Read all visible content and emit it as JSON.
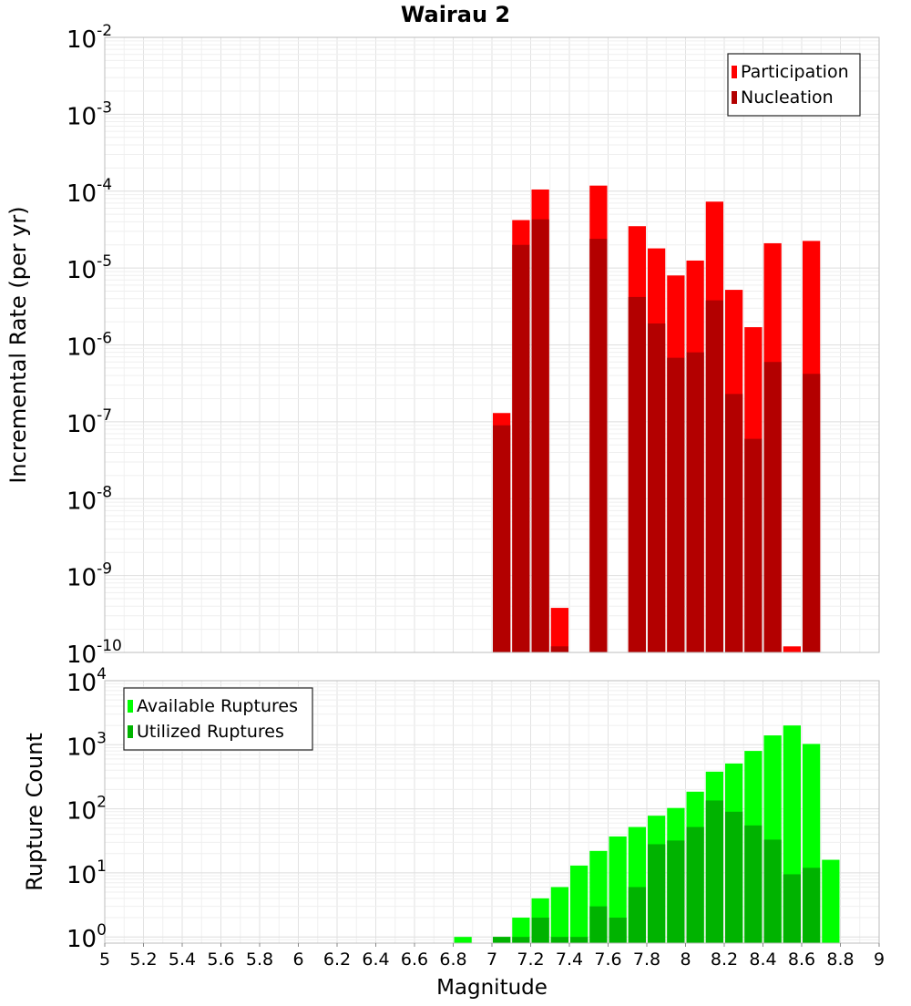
{
  "chart_data": [
    {
      "type": "bar",
      "title": "Wairau 2",
      "ylabel": "Incremental Rate (per yr)",
      "y_scale": "log",
      "ylim": [
        1e-10,
        0.01
      ],
      "y_tick_exponents": [
        "-2",
        "-3",
        "-4",
        "-5",
        "-6",
        "-7",
        "-8",
        "-9",
        "-10"
      ],
      "grid": true,
      "legend_position": "top-right",
      "x": [
        7.05,
        7.15,
        7.25,
        7.35,
        7.55,
        7.75,
        7.85,
        7.95,
        8.05,
        8.15,
        8.25,
        8.35,
        8.45,
        8.55,
        8.65
      ],
      "series": [
        {
          "name": "Participation",
          "color": "#ff0000",
          "values": [
            1.3e-07,
            4.2e-05,
            0.000105,
            3.8e-10,
            0.000118,
            3.5e-05,
            1.8e-05,
            8e-06,
            1.25e-05,
            7.3e-05,
            5.2e-06,
            1.7e-06,
            2.1e-05,
            1.2e-10,
            2.25e-05
          ]
        },
        {
          "name": "Nucleation",
          "color": "#b30000",
          "values": [
            9e-08,
            2e-05,
            4.3e-05,
            1.2e-10,
            2.4e-05,
            4.2e-06,
            1.9e-06,
            6.8e-07,
            8e-07,
            3.8e-06,
            2.3e-07,
            6e-08,
            6e-07,
            null,
            4.2e-07
          ]
        }
      ]
    },
    {
      "type": "bar",
      "xlabel": "Magnitude",
      "ylabel": "Rupture Count",
      "y_scale": "log",
      "ylim": [
        0.8,
        10000
      ],
      "y_tick_exponents": [
        "4",
        "3",
        "2",
        "1",
        "0"
      ],
      "xlim": [
        5,
        9
      ],
      "x_tick_labels": [
        "5",
        "5.2",
        "5.4",
        "5.6",
        "5.8",
        "6",
        "6.2",
        "6.4",
        "6.6",
        "6.8",
        "7",
        "7.2",
        "7.4",
        "7.6",
        "7.8",
        "8",
        "8.2",
        "8.4",
        "8.6",
        "8.8",
        "9"
      ],
      "grid": true,
      "legend_position": "top-left",
      "x": [
        6.85,
        7.05,
        7.15,
        7.25,
        7.35,
        7.45,
        7.55,
        7.65,
        7.75,
        7.85,
        7.95,
        8.05,
        8.15,
        8.25,
        8.35,
        8.45,
        8.55,
        8.65,
        8.75
      ],
      "series": [
        {
          "name": "Available Ruptures",
          "color": "#00ff00",
          "values": [
            1,
            1,
            2,
            4,
            6,
            13,
            22,
            37,
            52,
            78,
            103,
            185,
            380,
            510,
            800,
            1400,
            2000,
            1030,
            16
          ]
        },
        {
          "name": "Utilized Ruptures",
          "color": "#00b300",
          "values": [
            null,
            1,
            1,
            2,
            1,
            1,
            3,
            2,
            6,
            28,
            32,
            52,
            135,
            90,
            55,
            33,
            9.5,
            12,
            null
          ]
        }
      ]
    }
  ]
}
